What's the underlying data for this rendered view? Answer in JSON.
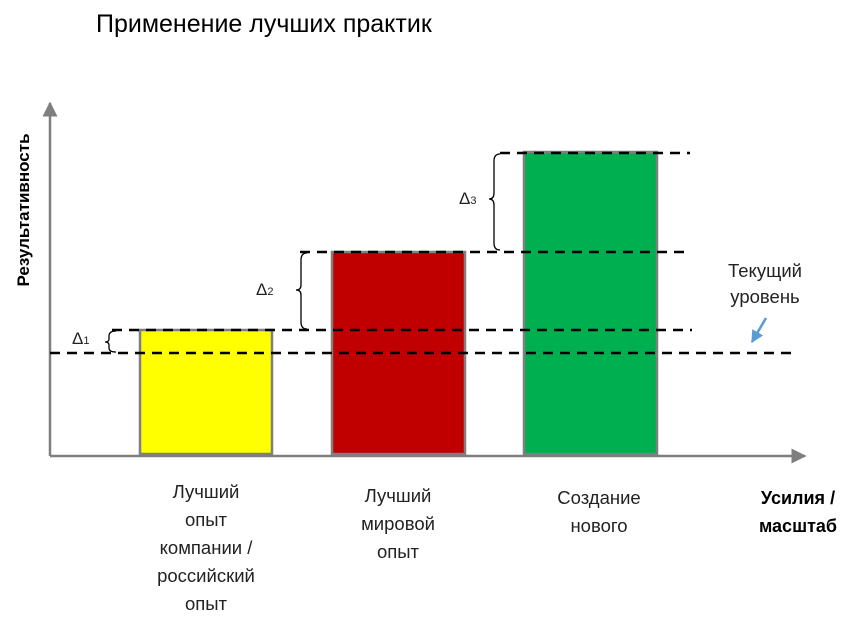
{
  "title": "Применение лучших практик",
  "axes": {
    "x_label_line1": "Усилия /",
    "x_label_line2": "масштаб",
    "y_label": "Результативность"
  },
  "bars": [
    {
      "label_lines": [
        "Лучший",
        "опыт",
        "компании /",
        "российский",
        "опыт"
      ],
      "level": 1,
      "color": "#ffff00"
    },
    {
      "label_lines": [
        "Лучший",
        "мировой",
        "опыт"
      ],
      "level": 2,
      "color": "#c00000"
    },
    {
      "label_lines": [
        "Создание",
        "нового"
      ],
      "level": 3,
      "color": "#00b050"
    }
  ],
  "deltas": [
    {
      "symbol": "Δ",
      "sub": "1"
    },
    {
      "symbol": "Δ",
      "sub": "2"
    },
    {
      "symbol": "Δ",
      "sub": "3"
    }
  ],
  "current_level": {
    "line1": "Текущий",
    "line2": "уровень",
    "arrow_color": "#5b9bd5"
  },
  "colors": {
    "axis": "#7f7f7f",
    "bar_border": "#7f7f7f",
    "dashed_line": "#000000"
  }
}
